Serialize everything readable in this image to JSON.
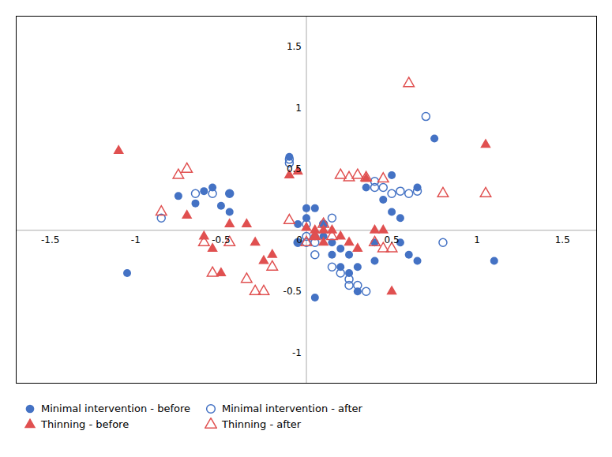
{
  "chart_data": {
    "type": "scatter",
    "series": [
      {
        "name": "Minimal intervention - before",
        "color": "#4472C4",
        "marker": "circle",
        "values": [
          [
            -1.05,
            -0.35
          ],
          [
            -0.75,
            0.28
          ],
          [
            -0.65,
            0.22
          ],
          [
            -0.6,
            0.32
          ],
          [
            -0.55,
            0.35
          ],
          [
            -0.5,
            0.2
          ],
          [
            -0.45,
            0.3
          ],
          [
            -0.45,
            0.15
          ],
          [
            -0.1,
            0.6
          ],
          [
            -0.05,
            0.05
          ],
          [
            -0.05,
            -0.1
          ],
          [
            0.0,
            0.18
          ],
          [
            0.0,
            0.1
          ],
          [
            0.05,
            0.18
          ],
          [
            0.05,
            -0.05
          ],
          [
            0.1,
            0.05
          ],
          [
            0.1,
            -0.05
          ],
          [
            0.15,
            -0.1
          ],
          [
            0.15,
            -0.2
          ],
          [
            0.2,
            -0.15
          ],
          [
            0.2,
            -0.3
          ],
          [
            0.25,
            -0.2
          ],
          [
            0.25,
            -0.35
          ],
          [
            0.3,
            -0.3
          ],
          [
            0.3,
            -0.5
          ],
          [
            0.35,
            0.35
          ],
          [
            0.4,
            -0.1
          ],
          [
            0.4,
            -0.25
          ],
          [
            0.45,
            0.25
          ],
          [
            0.5,
            0.45
          ],
          [
            0.5,
            0.15
          ],
          [
            0.55,
            0.1
          ],
          [
            0.55,
            -0.1
          ],
          [
            0.6,
            -0.2
          ],
          [
            0.65,
            -0.25
          ],
          [
            0.65,
            0.35
          ],
          [
            0.75,
            0.75
          ],
          [
            1.1,
            -0.25
          ],
          [
            0.05,
            -0.55
          ]
        ]
      },
      {
        "name": "Minimal intervention - after",
        "color": "#4472C4",
        "marker": "circle-open",
        "values": [
          [
            -0.85,
            0.1
          ],
          [
            -0.65,
            0.3
          ],
          [
            -0.55,
            0.3
          ],
          [
            -0.45,
            0.3
          ],
          [
            -0.1,
            0.55
          ],
          [
            -0.1,
            0.58
          ],
          [
            0.0,
            0.05
          ],
          [
            0.0,
            -0.05
          ],
          [
            0.0,
            -0.1
          ],
          [
            0.05,
            -0.1
          ],
          [
            0.05,
            -0.2
          ],
          [
            0.1,
            0.05
          ],
          [
            0.15,
            0.1
          ],
          [
            0.15,
            -0.3
          ],
          [
            0.2,
            -0.35
          ],
          [
            0.25,
            -0.4
          ],
          [
            0.25,
            -0.45
          ],
          [
            0.3,
            -0.45
          ],
          [
            0.35,
            -0.5
          ],
          [
            0.4,
            0.35
          ],
          [
            0.4,
            0.4
          ],
          [
            0.45,
            0.35
          ],
          [
            0.5,
            0.3
          ],
          [
            0.55,
            0.32
          ],
          [
            0.6,
            0.3
          ],
          [
            0.65,
            0.32
          ],
          [
            0.7,
            0.93
          ],
          [
            0.8,
            -0.1
          ],
          [
            -0.05,
            -0.1
          ]
        ]
      },
      {
        "name": "Thinning - before",
        "color": "#E05050",
        "marker": "triangle",
        "values": [
          [
            -1.1,
            0.65
          ],
          [
            -0.7,
            0.12
          ],
          [
            -0.6,
            -0.05
          ],
          [
            -0.55,
            -0.15
          ],
          [
            -0.5,
            -0.35
          ],
          [
            -0.45,
            0.05
          ],
          [
            -0.35,
            0.05
          ],
          [
            -0.3,
            -0.1
          ],
          [
            -0.25,
            -0.25
          ],
          [
            -0.2,
            -0.2
          ],
          [
            -0.1,
            0.45
          ],
          [
            -0.05,
            0.48
          ],
          [
            0.0,
            0.02
          ],
          [
            0.05,
            0.0
          ],
          [
            0.05,
            -0.05
          ],
          [
            0.1,
            -0.1
          ],
          [
            0.1,
            0.0
          ],
          [
            0.15,
            0.0
          ],
          [
            0.2,
            -0.05
          ],
          [
            0.25,
            -0.1
          ],
          [
            0.3,
            -0.15
          ],
          [
            0.35,
            0.42
          ],
          [
            0.4,
            0.0
          ],
          [
            0.45,
            0.0
          ],
          [
            0.5,
            -0.5
          ],
          [
            1.05,
            0.7
          ]
        ]
      },
      {
        "name": "Thinning - after",
        "color": "#E05050",
        "marker": "triangle-open",
        "values": [
          [
            -0.85,
            0.15
          ],
          [
            -0.75,
            0.45
          ],
          [
            -0.7,
            0.5
          ],
          [
            -0.6,
            -0.1
          ],
          [
            -0.55,
            -0.35
          ],
          [
            -0.45,
            -0.1
          ],
          [
            -0.35,
            -0.4
          ],
          [
            -0.3,
            -0.5
          ],
          [
            -0.25,
            -0.5
          ],
          [
            -0.2,
            -0.3
          ],
          [
            -0.1,
            0.08
          ],
          [
            0.0,
            -0.1
          ],
          [
            0.05,
            -0.05
          ],
          [
            0.1,
            0.05
          ],
          [
            0.15,
            -0.05
          ],
          [
            0.2,
            0.45
          ],
          [
            0.25,
            0.43
          ],
          [
            0.3,
            0.45
          ],
          [
            0.35,
            0.43
          ],
          [
            0.4,
            -0.1
          ],
          [
            0.45,
            -0.15
          ],
          [
            0.45,
            0.42
          ],
          [
            0.5,
            -0.15
          ],
          [
            0.6,
            1.2
          ],
          [
            0.8,
            0.3
          ],
          [
            1.05,
            0.3
          ]
        ]
      }
    ],
    "xlim": [
      -1.7,
      1.7
    ],
    "ylim": [
      -1.25,
      1.75
    ],
    "xticks": [
      -1.5,
      -1,
      -0.5,
      0,
      0.5,
      1,
      1.5
    ],
    "yticks": [
      -1,
      -0.5,
      0.5,
      1,
      1.5
    ],
    "legend": "bottom"
  }
}
